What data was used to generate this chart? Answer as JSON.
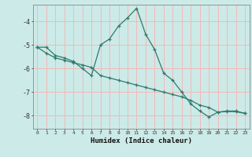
{
  "xlabel": "Humidex (Indice chaleur)",
  "background_color": "#cceae7",
  "grid_color": "#f5b8b8",
  "line_color": "#2d7a6e",
  "xlim": [
    -0.5,
    23.5
  ],
  "ylim": [
    -8.55,
    -3.3
  ],
  "yticks": [
    -8,
    -7,
    -6,
    -5,
    -4
  ],
  "xticks": [
    0,
    1,
    2,
    3,
    4,
    5,
    6,
    7,
    8,
    9,
    10,
    11,
    12,
    13,
    14,
    15,
    16,
    17,
    18,
    19,
    20,
    21,
    22,
    23
  ],
  "line1_x": [
    0,
    1,
    2,
    3,
    4,
    5,
    6,
    7,
    8,
    9,
    10,
    11,
    12,
    13,
    14,
    15,
    16,
    17,
    18,
    19,
    20,
    21,
    22,
    23
  ],
  "line1_y": [
    -5.1,
    -5.1,
    -5.45,
    -5.55,
    -5.7,
    -6.0,
    -6.3,
    -5.0,
    -4.75,
    -4.2,
    -3.85,
    -3.45,
    -4.55,
    -5.2,
    -6.2,
    -6.5,
    -7.0,
    -7.5,
    -7.8,
    -8.05,
    -7.85,
    -7.8,
    -7.8,
    -7.9
  ],
  "line2_x": [
    0,
    1,
    2,
    3,
    4,
    5,
    6,
    7,
    8,
    9,
    10,
    11,
    12,
    13,
    14,
    15,
    16,
    17,
    18,
    19,
    20,
    21,
    22,
    23
  ],
  "line2_y": [
    -5.1,
    -5.35,
    -5.55,
    -5.65,
    -5.75,
    -5.85,
    -5.95,
    -6.3,
    -6.4,
    -6.5,
    -6.6,
    -6.7,
    -6.8,
    -6.9,
    -7.0,
    -7.1,
    -7.2,
    -7.35,
    -7.55,
    -7.65,
    -7.85,
    -7.82,
    -7.83,
    -7.9
  ]
}
